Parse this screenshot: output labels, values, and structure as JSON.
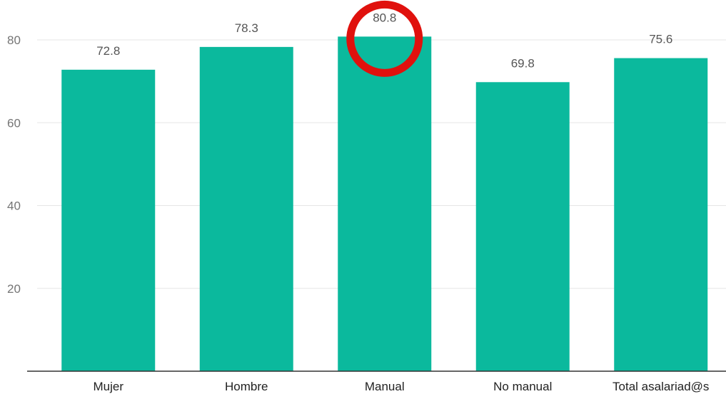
{
  "chart_data": {
    "type": "bar",
    "categories": [
      "Mujer",
      "Hombre",
      "Manual",
      "No manual",
      "Total asalariad@s"
    ],
    "values": [
      72.8,
      78.3,
      80.8,
      69.8,
      75.6
    ],
    "data_labels": [
      "72.8",
      "78.3",
      "80.8",
      "69.8",
      "75.6"
    ],
    "y_ticks": [
      20,
      40,
      60,
      80
    ],
    "ylim": [
      0,
      82
    ],
    "grid": true,
    "legend": "none",
    "bar_color": "#0bb99d",
    "highlight": {
      "category": "Manual",
      "shape": "circle",
      "color": "#e0110d"
    }
  },
  "colors": {
    "bar": "#0bb99d",
    "grid": "#e6e6e6",
    "axis": "#333333",
    "highlight": "#e0110d"
  }
}
